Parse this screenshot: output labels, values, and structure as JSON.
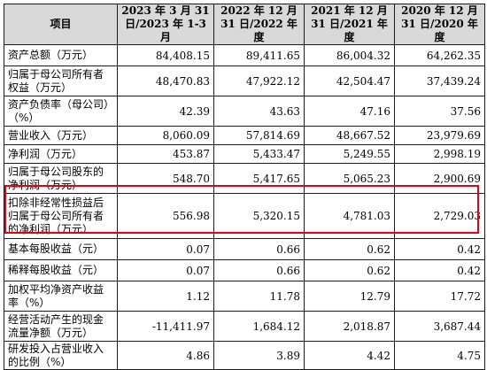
{
  "headers": [
    "项目",
    "2023 年 3 月 31 日/2023 年 1-3 月",
    "2022 年 12 月 31 日/2022 年度",
    "2021 年 12 月 31 日/2021 年度",
    "2020 年 12 月 31 日/2020 年度"
  ],
  "rows": [
    {
      "label": "资产总额（万元）",
      "values": [
        "84,408.15",
        "89,411.65",
        "86,004.32",
        "64,262.35"
      ]
    },
    {
      "label": "归属于母公司所有者权益（万元）",
      "values": [
        "48,470.83",
        "47,922.12",
        "42,504.47",
        "37,439.24"
      ]
    },
    {
      "label": "资产负债率（母公司）（%）",
      "values": [
        "42.39",
        "43.63",
        "47.16",
        "37.56"
      ]
    },
    {
      "label": "营业收入（万元）",
      "values": [
        "8,060.09",
        "57,814.69",
        "48,667.52",
        "23,979.69"
      ]
    },
    {
      "label": "净利润（万元）",
      "values": [
        "453.87",
        "5,433.47",
        "5,249.55",
        "2,998.19"
      ]
    },
    {
      "label": "归属于母公司股东的净利润（万元）",
      "values": [
        "548.70",
        "5,417.65",
        "5,065.23",
        "2,900.69"
      ]
    },
    {
      "label": "扣除非经常性损益后归属于母公司所有者的净利润（万元）",
      "values": [
        "556.98",
        "5,320.15",
        "4,781.03",
        "2,729.03"
      ]
    },
    {
      "label": "基本每股收益（元）",
      "values": [
        "0.07",
        "0.66",
        "0.62",
        "0.42"
      ]
    },
    {
      "label": "稀释每股收益（元）",
      "values": [
        "0.07",
        "0.66",
        "0.62",
        "0.42"
      ]
    },
    {
      "label": "加权平均净资产收益率（%）",
      "values": [
        "1.12",
        "11.78",
        "12.79",
        "17.72"
      ]
    },
    {
      "label": "经营活动产生的现金流量净额（万元）",
      "values": [
        "-11,411.97",
        "1,684.12",
        "2,018.87",
        "3,687.44"
      ]
    },
    {
      "label": "研发投入占营业收入的比例（%）",
      "values": [
        "4.86",
        "3.89",
        "4.42",
        "4.75"
      ]
    }
  ],
  "highlight": {
    "row_index": 6,
    "color": "#e60012"
  },
  "colors": {
    "header_bg": "#d9d9d9",
    "border": "#1a1a1a",
    "highlight": "#e60012"
  }
}
